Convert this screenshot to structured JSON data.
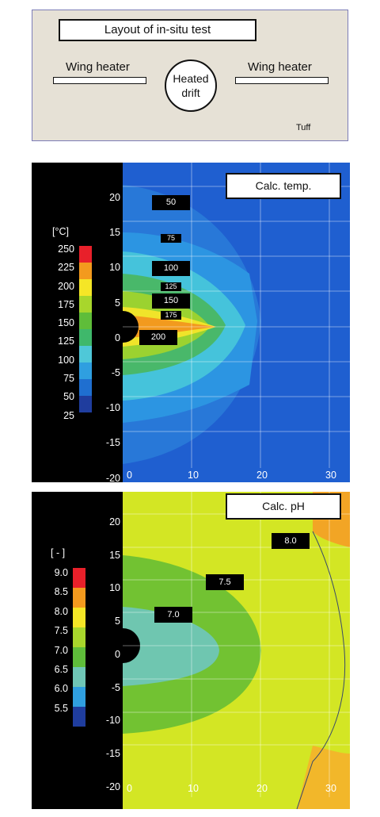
{
  "layout": {
    "title": "Layout of in-situ test",
    "left_heater": "Wing heater",
    "right_heater": "Wing heater",
    "drift_line1": "Heated",
    "drift_line2": "drift",
    "rock": "Tuff"
  },
  "temp_panel": {
    "title": "Calc. temp.",
    "legend_unit": "[°C]",
    "legend_ticks": [
      "250",
      "225",
      "200",
      "175",
      "150",
      "125",
      "100",
      "75",
      "50",
      "25"
    ],
    "legend_colors": [
      "#e8202a",
      "#f39a1e",
      "#f5e626",
      "#a8d62c",
      "#5fbd3a",
      "#3fb86b",
      "#4fc8d8",
      "#2f9fe0",
      "#1f6fd0",
      "#1f3d9e"
    ],
    "contour_labels": [
      "50",
      "75",
      "100",
      "125",
      "150",
      "175",
      "200"
    ],
    "y_ticks": [
      "20",
      "15",
      "10",
      "5",
      "0",
      "-5",
      "-10",
      "-15",
      "-20"
    ],
    "x_ticks": [
      "0",
      "10",
      "20",
      "30"
    ]
  },
  "ph_panel": {
    "title": "Calc. pH",
    "legend_unit": "[ - ]",
    "legend_ticks": [
      "9.0",
      "8.5",
      "8.0",
      "7.5",
      "7.0",
      "6.5",
      "6.0",
      "5.5"
    ],
    "legend_colors": [
      "#e8202a",
      "#f39a1e",
      "#f5e626",
      "#a8d62c",
      "#5fbd3a",
      "#6fc6b6",
      "#2f9fe0",
      "#1f3d9e"
    ],
    "contour_labels": [
      "7.0",
      "7.5",
      "8.0"
    ],
    "y_ticks": [
      "20",
      "15",
      "10",
      "5",
      "0",
      "-5",
      "-10",
      "-15",
      "-20"
    ],
    "x_ticks": [
      "0",
      "10",
      "20",
      "30"
    ]
  }
}
